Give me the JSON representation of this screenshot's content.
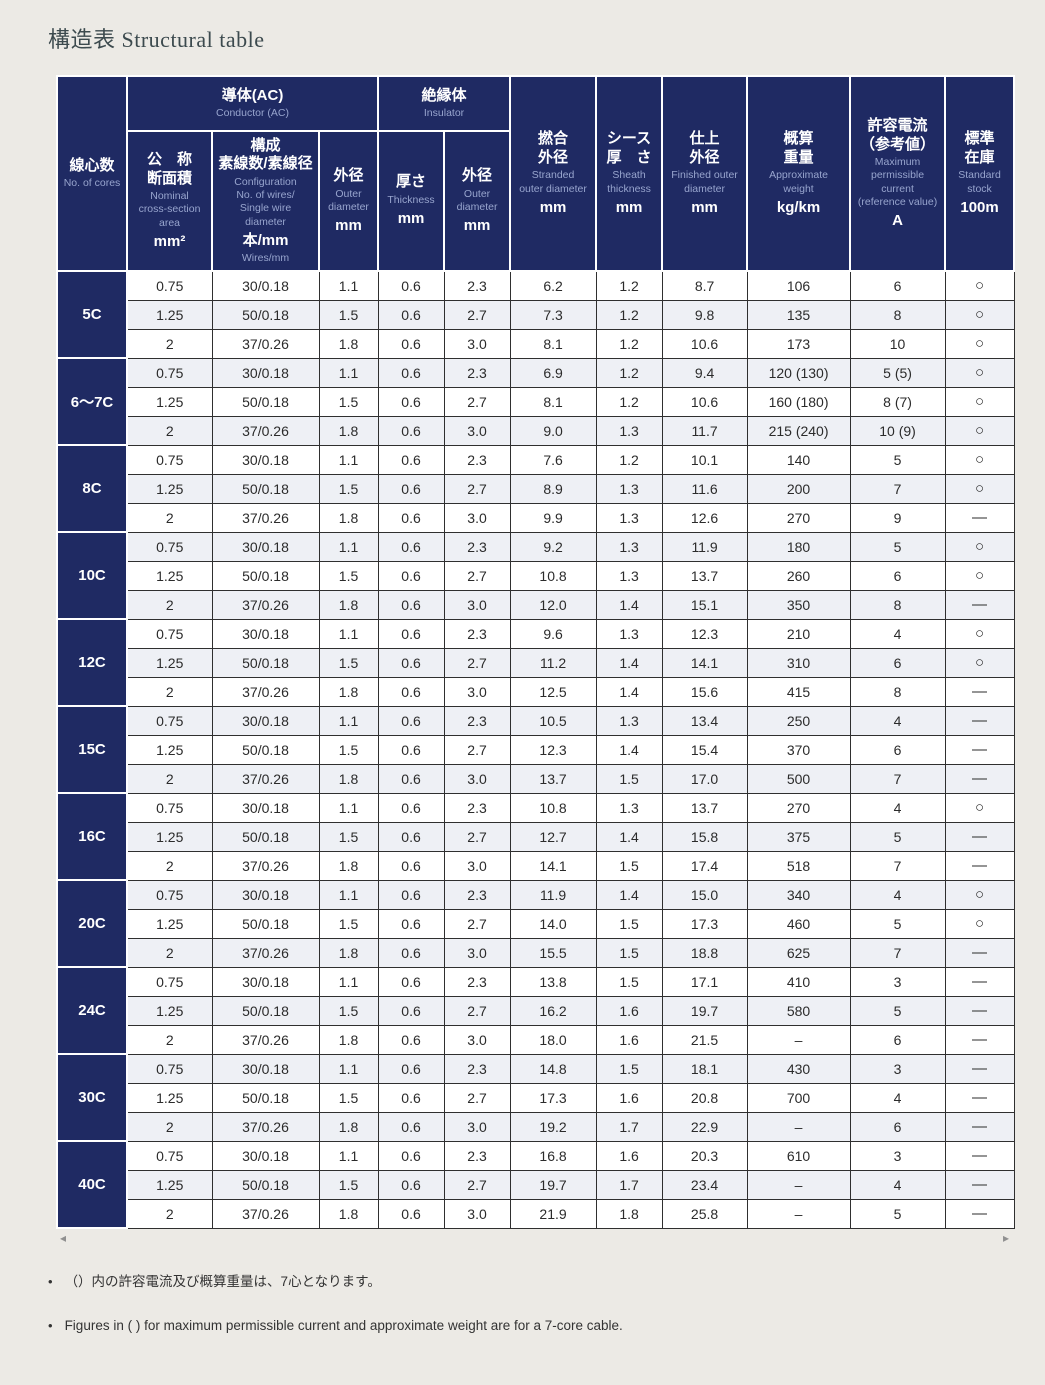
{
  "page": {
    "title": "構造表 Structural table"
  },
  "table": {
    "header": {
      "cores": {
        "jp": "線心数",
        "en": "No. of cores"
      },
      "conductor_group": {
        "jp": "導体(AC)",
        "en": "Conductor (AC)"
      },
      "insulator_group": {
        "jp": "絶縁体",
        "en": "Insulator"
      },
      "nominal_area": {
        "jp": "公　称\n断面積",
        "en": "Nominal\ncross-section\narea",
        "unit": "mm²"
      },
      "configuration": {
        "jp": "構成\n素線数/素線径",
        "en": "Configuration\nNo. of wires/\nSingle wire\ndiameter",
        "unit": "本/mm",
        "unit_en": "Wires/mm"
      },
      "conductor_od": {
        "jp": "外径",
        "en": "Outer\ndiameter",
        "unit": "mm"
      },
      "thickness": {
        "jp": "厚さ",
        "en": "Thickness",
        "unit": "mm"
      },
      "insulator_od": {
        "jp": "外径",
        "en": "Outer\ndiameter",
        "unit": "mm"
      },
      "stranded_od": {
        "jp": "撚合\n外径",
        "en": "Stranded\nouter diameter",
        "unit": "mm"
      },
      "sheath_thickness": {
        "jp": "シース\n厚　さ",
        "en": "Sheath\nthickness",
        "unit": "mm"
      },
      "finished_od": {
        "jp": "仕上\n外径",
        "en": "Finished outer\ndiameter",
        "unit": "mm"
      },
      "weight": {
        "jp": "概算\n重量",
        "en": "Approximate\nweight",
        "unit": "kg/km"
      },
      "current": {
        "jp": "許容電流\n（参考値）",
        "en": "Maximum\npermissible\ncurrent\n(reference value)",
        "unit": "A"
      },
      "stock": {
        "jp": "標準\n在庫",
        "en": "Standard\nstock",
        "unit": "100m"
      }
    },
    "groups": [
      {
        "label": "5C",
        "rows": [
          [
            "0.75",
            "30/0.18",
            "1.1",
            "0.6",
            "2.3",
            "6.2",
            "1.2",
            "8.7",
            "106",
            "6",
            "○"
          ],
          [
            "1.25",
            "50/0.18",
            "1.5",
            "0.6",
            "2.7",
            "7.3",
            "1.2",
            "9.8",
            "135",
            "8",
            "○"
          ],
          [
            "2",
            "37/0.26",
            "1.8",
            "0.6",
            "3.0",
            "8.1",
            "1.2",
            "10.6",
            "173",
            "10",
            "○"
          ]
        ]
      },
      {
        "label": "6〜7C",
        "rows": [
          [
            "0.75",
            "30/0.18",
            "1.1",
            "0.6",
            "2.3",
            "6.9",
            "1.2",
            "9.4",
            "120 (130)",
            "5 (5)",
            "○"
          ],
          [
            "1.25",
            "50/0.18",
            "1.5",
            "0.6",
            "2.7",
            "8.1",
            "1.2",
            "10.6",
            "160 (180)",
            "8 (7)",
            "○"
          ],
          [
            "2",
            "37/0.26",
            "1.8",
            "0.6",
            "3.0",
            "9.0",
            "1.3",
            "11.7",
            "215 (240)",
            "10 (9)",
            "○"
          ]
        ]
      },
      {
        "label": "8C",
        "rows": [
          [
            "0.75",
            "30/0.18",
            "1.1",
            "0.6",
            "2.3",
            "7.6",
            "1.2",
            "10.1",
            "140",
            "5",
            "○"
          ],
          [
            "1.25",
            "50/0.18",
            "1.5",
            "0.6",
            "2.7",
            "8.9",
            "1.3",
            "11.6",
            "200",
            "7",
            "○"
          ],
          [
            "2",
            "37/0.26",
            "1.8",
            "0.6",
            "3.0",
            "9.9",
            "1.3",
            "12.6",
            "270",
            "9",
            "—"
          ]
        ]
      },
      {
        "label": "10C",
        "rows": [
          [
            "0.75",
            "30/0.18",
            "1.1",
            "0.6",
            "2.3",
            "9.2",
            "1.3",
            "11.9",
            "180",
            "5",
            "○"
          ],
          [
            "1.25",
            "50/0.18",
            "1.5",
            "0.6",
            "2.7",
            "10.8",
            "1.3",
            "13.7",
            "260",
            "6",
            "○"
          ],
          [
            "2",
            "37/0.26",
            "1.8",
            "0.6",
            "3.0",
            "12.0",
            "1.4",
            "15.1",
            "350",
            "8",
            "—"
          ]
        ]
      },
      {
        "label": "12C",
        "rows": [
          [
            "0.75",
            "30/0.18",
            "1.1",
            "0.6",
            "2.3",
            "9.6",
            "1.3",
            "12.3",
            "210",
            "4",
            "○"
          ],
          [
            "1.25",
            "50/0.18",
            "1.5",
            "0.6",
            "2.7",
            "11.2",
            "1.4",
            "14.1",
            "310",
            "6",
            "○"
          ],
          [
            "2",
            "37/0.26",
            "1.8",
            "0.6",
            "3.0",
            "12.5",
            "1.4",
            "15.6",
            "415",
            "8",
            "—"
          ]
        ]
      },
      {
        "label": "15C",
        "rows": [
          [
            "0.75",
            "30/0.18",
            "1.1",
            "0.6",
            "2.3",
            "10.5",
            "1.3",
            "13.4",
            "250",
            "4",
            "—"
          ],
          [
            "1.25",
            "50/0.18",
            "1.5",
            "0.6",
            "2.7",
            "12.3",
            "1.4",
            "15.4",
            "370",
            "6",
            "—"
          ],
          [
            "2",
            "37/0.26",
            "1.8",
            "0.6",
            "3.0",
            "13.7",
            "1.5",
            "17.0",
            "500",
            "7",
            "—"
          ]
        ]
      },
      {
        "label": "16C",
        "rows": [
          [
            "0.75",
            "30/0.18",
            "1.1",
            "0.6",
            "2.3",
            "10.8",
            "1.3",
            "13.7",
            "270",
            "4",
            "○"
          ],
          [
            "1.25",
            "50/0.18",
            "1.5",
            "0.6",
            "2.7",
            "12.7",
            "1.4",
            "15.8",
            "375",
            "5",
            "—"
          ],
          [
            "2",
            "37/0.26",
            "1.8",
            "0.6",
            "3.0",
            "14.1",
            "1.5",
            "17.4",
            "518",
            "7",
            "—"
          ]
        ]
      },
      {
        "label": "20C",
        "rows": [
          [
            "0.75",
            "30/0.18",
            "1.1",
            "0.6",
            "2.3",
            "11.9",
            "1.4",
            "15.0",
            "340",
            "4",
            "○"
          ],
          [
            "1.25",
            "50/0.18",
            "1.5",
            "0.6",
            "2.7",
            "14.0",
            "1.5",
            "17.3",
            "460",
            "5",
            "○"
          ],
          [
            "2",
            "37/0.26",
            "1.8",
            "0.6",
            "3.0",
            "15.5",
            "1.5",
            "18.8",
            "625",
            "7",
            "—"
          ]
        ]
      },
      {
        "label": "24C",
        "rows": [
          [
            "0.75",
            "30/0.18",
            "1.1",
            "0.6",
            "2.3",
            "13.8",
            "1.5",
            "17.1",
            "410",
            "3",
            "—"
          ],
          [
            "1.25",
            "50/0.18",
            "1.5",
            "0.6",
            "2.7",
            "16.2",
            "1.6",
            "19.7",
            "580",
            "5",
            "—"
          ],
          [
            "2",
            "37/0.26",
            "1.8",
            "0.6",
            "3.0",
            "18.0",
            "1.6",
            "21.5",
            "–",
            "6",
            "—"
          ]
        ]
      },
      {
        "label": "30C",
        "rows": [
          [
            "0.75",
            "30/0.18",
            "1.1",
            "0.6",
            "2.3",
            "14.8",
            "1.5",
            "18.1",
            "430",
            "3",
            "—"
          ],
          [
            "1.25",
            "50/0.18",
            "1.5",
            "0.6",
            "2.7",
            "17.3",
            "1.6",
            "20.8",
            "700",
            "4",
            "—"
          ],
          [
            "2",
            "37/0.26",
            "1.8",
            "0.6",
            "3.0",
            "19.2",
            "1.7",
            "22.9",
            "–",
            "6",
            "—"
          ]
        ]
      },
      {
        "label": "40C",
        "rows": [
          [
            "0.75",
            "30/0.18",
            "1.1",
            "0.6",
            "2.3",
            "16.8",
            "1.6",
            "20.3",
            "610",
            "3",
            "—"
          ],
          [
            "1.25",
            "50/0.18",
            "1.5",
            "0.6",
            "2.7",
            "19.7",
            "1.7",
            "23.4",
            "–",
            "4",
            "—"
          ],
          [
            "2",
            "37/0.26",
            "1.8",
            "0.6",
            "3.0",
            "21.9",
            "1.8",
            "25.8",
            "–",
            "5",
            "—"
          ]
        ]
      }
    ]
  },
  "scrollbar": {
    "left": "◂",
    "right": "▸"
  },
  "notes": [
    "（）内の許容電流及び概算重量は、7心となります。",
    "Figures in ( ) for maximum permissible current and approximate weight are for a 7-core cable."
  ],
  "colors": {
    "header_navy": "#1f2a63",
    "header_subtitle": "#98a5ce",
    "alt_row": "#eef0f5",
    "page_background": "#eceae5",
    "grid_border": "#2f2f2f"
  }
}
